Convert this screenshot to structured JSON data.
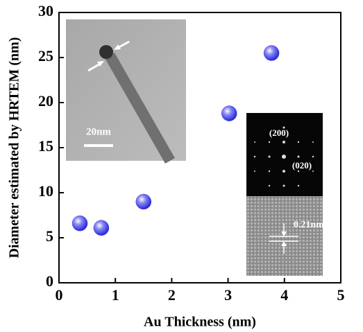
{
  "chart_data": {
    "type": "scatter",
    "x_label": "Au Thickness (nm)",
    "y_label": "Diameter estimated by HRTEM (nm)",
    "x": [
      0.37,
      0.75,
      1.5,
      3.02,
      3.77
    ],
    "values": [
      6.6,
      6.1,
      9.0,
      18.8,
      25.5
    ],
    "color": "#3a3ae8",
    "xlim": [
      0,
      5
    ],
    "xticks": [
      0,
      1,
      2,
      3,
      4,
      5
    ],
    "ylim": [
      0,
      30
    ],
    "yticks": [
      0,
      5,
      10,
      15,
      20,
      25,
      30
    ],
    "annotations": [
      "20nm",
      "(200)",
      "(020)",
      "0.21nm"
    ]
  }
}
